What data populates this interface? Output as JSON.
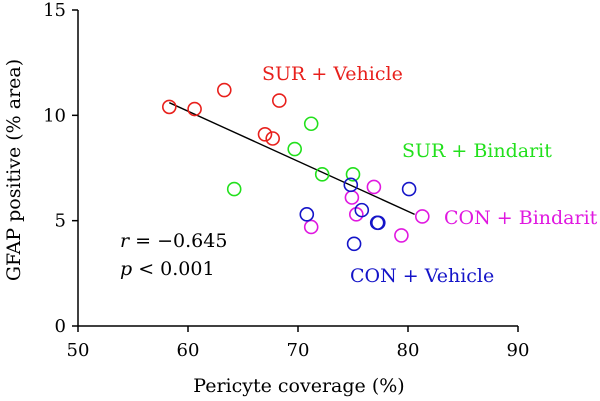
{
  "chart_data": {
    "type": "scatter",
    "title": "",
    "xlabel": "Pericyte coverage (%)",
    "ylabel": "GFAP positive (% area)",
    "xlim": [
      50,
      90
    ],
    "ylim": [
      0,
      15
    ],
    "xticks": [
      50,
      60,
      70,
      80,
      90
    ],
    "yticks": [
      0,
      5,
      10,
      15
    ],
    "grid": false,
    "series": [
      {
        "name": "SUR + Vehicle",
        "color": "#e8201c",
        "points": [
          [
            58.3,
            10.4
          ],
          [
            60.6,
            10.3
          ],
          [
            63.3,
            11.2
          ],
          [
            67.0,
            9.1
          ],
          [
            67.7,
            8.9
          ],
          [
            68.3,
            10.7
          ]
        ]
      },
      {
        "name": "SUR + Bindarit",
        "color": "#22e01c",
        "points": [
          [
            64.2,
            6.5
          ],
          [
            69.7,
            8.4
          ],
          [
            71.2,
            9.6
          ],
          [
            72.2,
            7.2
          ],
          [
            75.0,
            7.2
          ]
        ]
      },
      {
        "name": "CON + Bindarit",
        "color": "#e018e0",
        "points": [
          [
            71.2,
            4.7
          ],
          [
            74.9,
            6.1
          ],
          [
            75.3,
            5.3
          ],
          [
            76.9,
            6.6
          ],
          [
            79.4,
            4.3
          ],
          [
            81.3,
            5.2
          ]
        ]
      },
      {
        "name": "CON + Vehicle",
        "color": "#1414c8",
        "points": [
          [
            70.8,
            5.3
          ],
          [
            74.8,
            6.7
          ],
          [
            75.1,
            3.9
          ],
          [
            75.8,
            5.5
          ],
          [
            77.2,
            4.9
          ],
          [
            77.3,
            4.9
          ],
          [
            80.1,
            6.5
          ]
        ]
      }
    ],
    "regression_line": {
      "x": [
        58.3,
        80.6
      ],
      "y": [
        10.6,
        5.3
      ]
    },
    "annotations": {
      "r_symbol": "r",
      "r_value": " = −0.645",
      "p_symbol": "p",
      "p_value": " < 0.001"
    }
  }
}
